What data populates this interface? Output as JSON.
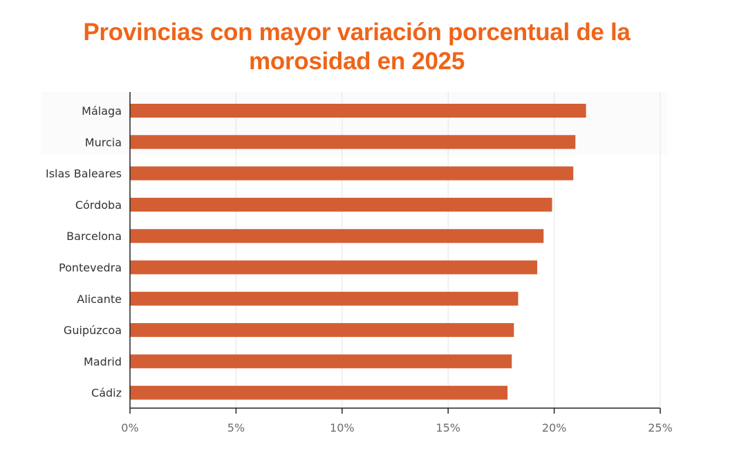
{
  "title_lines": [
    "Provincias con mayor variación porcentual de la",
    "morosidad en 2025"
  ],
  "colors": {
    "title": "#ef6418",
    "bar": "#d35e33",
    "grid": "#e3e3e3",
    "axis": "#222222"
  },
  "chart_data": {
    "type": "bar",
    "orientation": "horizontal",
    "categories": [
      "Málaga",
      "Murcia",
      "Islas Baleares",
      "Córdoba",
      "Barcelona",
      "Pontevedra",
      "Alicante",
      "Guipúzcoa",
      "Madrid",
      "Cádiz"
    ],
    "values": [
      21.5,
      21.0,
      20.9,
      19.9,
      19.5,
      19.2,
      18.3,
      18.1,
      18.0,
      17.8
    ],
    "x_ticks": [
      "0%",
      "5%",
      "10%",
      "15%",
      "20%",
      "25%"
    ],
    "xlim": [
      0,
      25
    ],
    "grid": true,
    "title": "Provincias con mayor variación porcentual de la morosidad en 2025"
  }
}
